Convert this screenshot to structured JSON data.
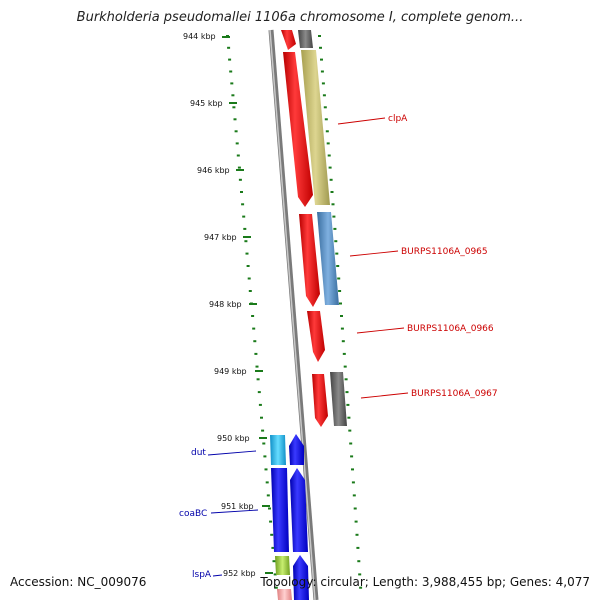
{
  "title": "Burkholderia pseudomallei 1106a chromosome I, complete genom...",
  "footer": {
    "accession": "Accession: NC_009076",
    "topology": "Topology: circular; Length: 3,988,455 bp; Genes: 4,077"
  },
  "scale": {
    "labels": [
      "944 kbp",
      "945 kbp",
      "946 kbp",
      "947 kbp",
      "948 kbp",
      "949 kbp",
      "950 kbp",
      "951 kbp",
      "952 kbp"
    ]
  },
  "gene_labels": [
    {
      "text": "clpA",
      "color": "#cc0000"
    },
    {
      "text": "BURPS1106A_0965",
      "color": "#cc0000"
    },
    {
      "text": "BURPS1106A_0966",
      "color": "#cc0000"
    },
    {
      "text": "BURPS1106A_0967",
      "color": "#cc0000"
    },
    {
      "text": "dut",
      "color": "#0000aa"
    },
    {
      "text": "coaBC",
      "color": "#0000aa"
    },
    {
      "text": "lspA",
      "color": "#0000aa"
    }
  ],
  "colors": {
    "tick": "#1a7a1a",
    "backbone": "#7a7a7a",
    "forward_gene": "#ee0000",
    "reverse_gene": "#0000ee",
    "blast_olive": "#c8c070",
    "blast_steel": "#5a8ec0",
    "blast_gray": "#666666",
    "blast_cyan": "#22bbee",
    "blast_lime": "#99cc33",
    "blast_pink": "#f0a0a0"
  }
}
